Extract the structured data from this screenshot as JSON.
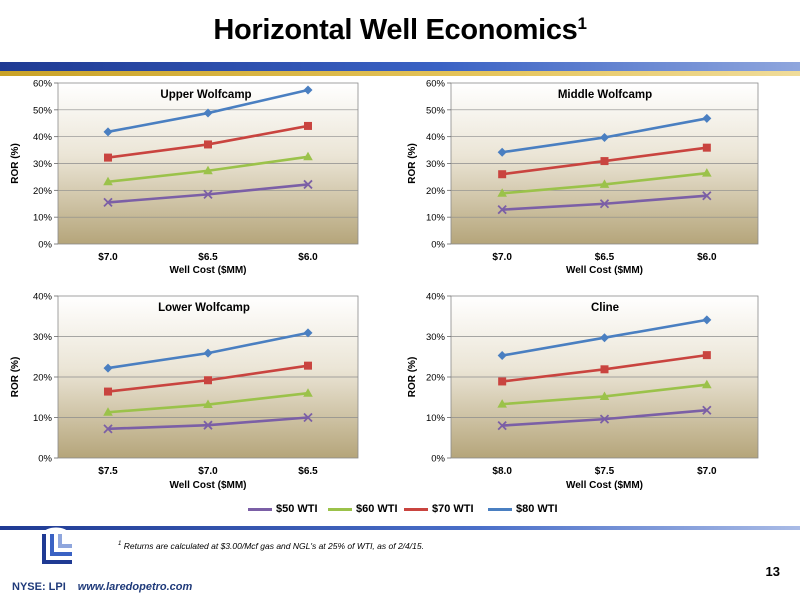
{
  "title": "Horizontal Well Economics",
  "title_superscript": "1",
  "colors": {
    "series_50": "#7b5fa6",
    "series_60": "#9bc24a",
    "series_70": "#c9443f",
    "series_80": "#4a7fc1",
    "band_blue": "#1f3a93",
    "band_gold": "#c9a227"
  },
  "legend": [
    {
      "name": "$50 WTI",
      "color": "#7b5fa6"
    },
    {
      "name": "$60 WTI",
      "color": "#9bc24a"
    },
    {
      "name": "$70 WTI",
      "color": "#c9443f"
    },
    {
      "name": "$80 WTI",
      "color": "#4a7fc1"
    }
  ],
  "chart_data": [
    {
      "type": "line",
      "title": "Upper Wolfcamp",
      "xlabel": "Well Cost ($MM)",
      "ylabel": "ROR (%)",
      "categories": [
        "$7.0",
        "$6.5",
        "$6.0"
      ],
      "ylim": [
        0,
        60
      ],
      "yticks": [
        "0%",
        "10%",
        "20%",
        "30%",
        "40%",
        "50%",
        "60%"
      ],
      "grid": true,
      "series": [
        {
          "name": "$50 WTI",
          "marker": "x",
          "values": [
            15.5,
            18.5,
            22.2
          ]
        },
        {
          "name": "$60 WTI",
          "marker": "triangle",
          "values": [
            23.2,
            27.3,
            32.5
          ]
        },
        {
          "name": "$70 WTI",
          "marker": "square",
          "values": [
            32.2,
            37.1,
            44.0
          ]
        },
        {
          "name": "$80 WTI",
          "marker": "diamond",
          "values": [
            41.8,
            48.8,
            57.4
          ]
        }
      ]
    },
    {
      "type": "line",
      "title": "Middle Wolfcamp",
      "xlabel": "Well Cost ($MM)",
      "ylabel": "ROR (%)",
      "categories": [
        "$7.0",
        "$6.5",
        "$6.0"
      ],
      "ylim": [
        0,
        60
      ],
      "yticks": [
        "0%",
        "10%",
        "20%",
        "30%",
        "40%",
        "50%",
        "60%"
      ],
      "grid": true,
      "series": [
        {
          "name": "$50 WTI",
          "marker": "x",
          "values": [
            12.8,
            15.0,
            18.0
          ]
        },
        {
          "name": "$60 WTI",
          "marker": "triangle",
          "values": [
            18.9,
            22.2,
            26.4
          ]
        },
        {
          "name": "$70 WTI",
          "marker": "square",
          "values": [
            26.0,
            30.9,
            35.9
          ]
        },
        {
          "name": "$80 WTI",
          "marker": "diamond",
          "values": [
            34.2,
            39.7,
            46.8
          ]
        }
      ]
    },
    {
      "type": "line",
      "title": "Lower Wolfcamp",
      "xlabel": "Well Cost ($MM)",
      "ylabel": "ROR (%)",
      "categories": [
        "$7.5",
        "$7.0",
        "$6.5"
      ],
      "ylim": [
        0,
        40
      ],
      "yticks": [
        "0%",
        "10%",
        "20%",
        "30%",
        "40%"
      ],
      "grid": true,
      "series": [
        {
          "name": "$50 WTI",
          "marker": "x",
          "values": [
            7.2,
            8.1,
            10.0
          ]
        },
        {
          "name": "$60 WTI",
          "marker": "triangle",
          "values": [
            11.3,
            13.2,
            16.0
          ]
        },
        {
          "name": "$70 WTI",
          "marker": "square",
          "values": [
            16.4,
            19.2,
            22.8
          ]
        },
        {
          "name": "$80 WTI",
          "marker": "diamond",
          "values": [
            22.2,
            25.9,
            30.9
          ]
        }
      ]
    },
    {
      "type": "line",
      "title": "Cline",
      "xlabel": "Well Cost ($MM)",
      "ylabel": "ROR (%)",
      "categories": [
        "$8.0",
        "$7.5",
        "$7.0"
      ],
      "ylim": [
        0,
        40
      ],
      "yticks": [
        "0%",
        "10%",
        "20%",
        "30%",
        "40%"
      ],
      "grid": true,
      "series": [
        {
          "name": "$50 WTI",
          "marker": "x",
          "values": [
            8.0,
            9.6,
            11.8
          ]
        },
        {
          "name": "$60 WTI",
          "marker": "triangle",
          "values": [
            13.3,
            15.2,
            18.1
          ]
        },
        {
          "name": "$70 WTI",
          "marker": "square",
          "values": [
            18.9,
            21.9,
            25.4
          ]
        },
        {
          "name": "$80 WTI",
          "marker": "diamond",
          "values": [
            25.3,
            29.7,
            34.1
          ]
        }
      ]
    }
  ],
  "footnote": {
    "marker": "1",
    "text": "Returns are calculated at $3.00/Mcf gas and NGL's at 25% of WTI, as of 2/4/15."
  },
  "page_number": "13",
  "footer": {
    "ticker": "NYSE: LPI",
    "website": "www.laredopetro.com"
  }
}
